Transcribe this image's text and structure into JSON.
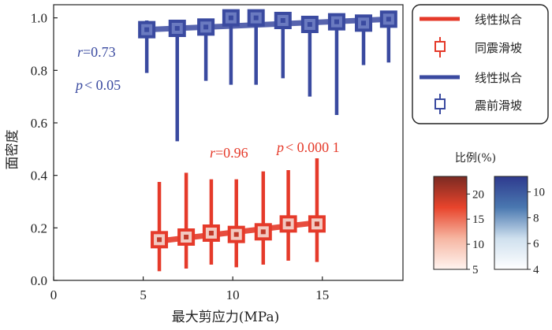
{
  "chart_data": {
    "type": "scatter",
    "xlabel": "最大剪应力(MPa)",
    "ylabel": "面密度",
    "xlim": [
      0,
      19.5
    ],
    "ylim": [
      0,
      1.05
    ],
    "xticks": [
      0,
      5,
      10,
      15
    ],
    "yticks": [
      0.0,
      0.2,
      0.4,
      0.6,
      0.8,
      1.0
    ],
    "yticklabels": [
      "0.0",
      "0.2",
      "0.4",
      "0.6",
      "0.8",
      "1.0"
    ],
    "series": [
      {
        "name": "震前滑坡",
        "color": "#3a4aa0",
        "points": [
          {
            "x": 5.2,
            "y": 0.955,
            "lo": 0.79,
            "hi": 0.99
          },
          {
            "x": 6.9,
            "y": 0.96,
            "lo": 0.53,
            "hi": 0.99
          },
          {
            "x": 8.5,
            "y": 0.965,
            "lo": 0.76,
            "hi": 0.99
          },
          {
            "x": 9.9,
            "y": 1.0,
            "lo": 0.745,
            "hi": 1.01
          },
          {
            "x": 11.3,
            "y": 1.0,
            "lo": 0.745,
            "hi": 1.01
          },
          {
            "x": 12.8,
            "y": 0.99,
            "lo": 0.77,
            "hi": 1.01
          },
          {
            "x": 14.3,
            "y": 0.975,
            "lo": 0.7,
            "hi": 1.0
          },
          {
            "x": 15.8,
            "y": 0.985,
            "lo": 0.63,
            "hi": 1.0
          },
          {
            "x": 17.3,
            "y": 0.98,
            "lo": 0.82,
            "hi": 1.0
          },
          {
            "x": 18.7,
            "y": 0.995,
            "lo": 0.83,
            "hi": 1.01
          }
        ],
        "fit": {
          "x": [
            5.2,
            18.7
          ],
          "y": [
            0.955,
            0.995
          ]
        }
      },
      {
        "name": "同震滑坡",
        "color": "#e53a2a",
        "points": [
          {
            "x": 5.9,
            "y": 0.155,
            "lo": 0.035,
            "hi": 0.375
          },
          {
            "x": 7.4,
            "y": 0.165,
            "lo": 0.045,
            "hi": 0.41
          },
          {
            "x": 8.8,
            "y": 0.18,
            "lo": 0.06,
            "hi": 0.385
          },
          {
            "x": 10.2,
            "y": 0.175,
            "lo": 0.05,
            "hi": 0.385
          },
          {
            "x": 11.7,
            "y": 0.185,
            "lo": 0.06,
            "hi": 0.415
          },
          {
            "x": 13.1,
            "y": 0.215,
            "lo": 0.075,
            "hi": 0.42
          },
          {
            "x": 14.7,
            "y": 0.215,
            "lo": 0.07,
            "hi": 0.465
          }
        ],
        "fit": {
          "x": [
            5.9,
            14.7
          ],
          "y": [
            0.15,
            0.22
          ]
        }
      }
    ],
    "annotations": {
      "blue_r_var": "r",
      "blue_r_val": "=0.73",
      "blue_p_var": "p",
      "blue_p_val": "< 0.05",
      "red_r_var": "r",
      "red_r_val": "=0.96",
      "red_p_var": "p",
      "red_p_val": "< 0.000 1"
    },
    "legend": {
      "position": "top-right",
      "entries": [
        {
          "label": "线性拟合",
          "kind": "line",
          "color": "#e53a2a"
        },
        {
          "label": "同震滑坡",
          "kind": "marker",
          "color": "#e53a2a"
        },
        {
          "label": "线性拟合",
          "kind": "line",
          "color": "#3a4aa0"
        },
        {
          "label": "震前滑坡",
          "kind": "marker",
          "color": "#3a4aa0"
        }
      ]
    },
    "colorbar": {
      "title": "比例(%)",
      "red": {
        "ticks": [
          5,
          10,
          15,
          20
        ],
        "range": [
          5,
          23.5
        ],
        "colors": [
          "#fff4f0",
          "#f6b6a2",
          "#e8442c",
          "#7a2a22"
        ]
      },
      "blue": {
        "ticks": [
          4,
          6,
          8,
          10
        ],
        "range": [
          4,
          11.2
        ],
        "colors": [
          "#ffffff",
          "#cfe0ee",
          "#4a78b0",
          "#2e3a8e"
        ]
      }
    }
  }
}
